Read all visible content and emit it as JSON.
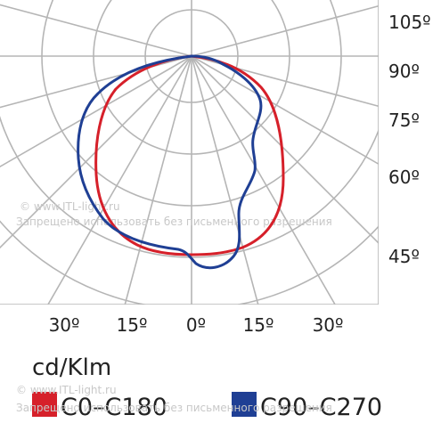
{
  "chart_data": {
    "type": "polar",
    "unit_label": "cd/Klm",
    "angle_labels_right": [
      "105º",
      "90º",
      "75º",
      "60º",
      "45º"
    ],
    "angle_labels_bottom": [
      "30º",
      "15º",
      "0º",
      "15º",
      "30º"
    ],
    "angular_grid_step_deg": 15,
    "series": [
      {
        "name": "C0–C180",
        "color": "#d6202a",
        "shape": "near-circular",
        "values": []
      },
      {
        "name": "C90–C270",
        "color": "#1f3f94",
        "shape": "wide asymmetric batwing",
        "values": []
      }
    ]
  },
  "watermarks": [
    "© www.ITL-light.ru",
    "Запрещено использовать без письменного разрешения",
    "© www.ITL-light.ru",
    "Запрещено использовать без письменного разрешения"
  ]
}
